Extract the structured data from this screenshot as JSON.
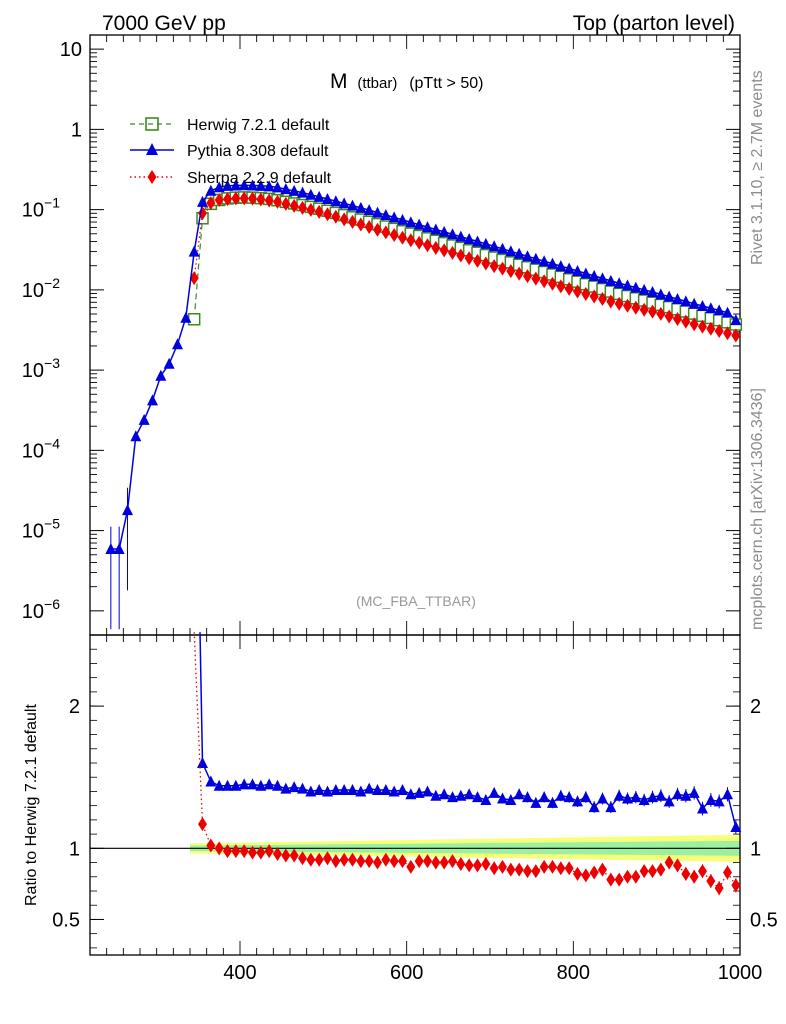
{
  "header": {
    "left": "7000 GeV pp",
    "right": "Top (parton level)"
  },
  "plot_title": {
    "main": "M",
    "sub": "(ttbar)",
    "cut": "(pTtt > 50)"
  },
  "side_labels": {
    "rivet": "Rivet 3.1.10, ≥ 2.7M events",
    "mcplots": "mcplots.cern.ch [arXiv:1306.3436]"
  },
  "analysis_tag": "(MC_FBA_TTBAR)",
  "ratio_ylabel": "Ratio to Herwig 7.2.1 default",
  "colors": {
    "herwig": "#3a8a1e",
    "pythia": "#0000dd",
    "sherpa": "#ee0000",
    "band_outer": "#f5ff7a",
    "band_inner": "#9cf0a0"
  },
  "chart_data": [
    {
      "type": "line",
      "yscale": "log",
      "xlim": [
        220,
        1000
      ],
      "ylim": [
        5e-07,
        15
      ],
      "yticks": [
        {
          "v": 10,
          "label": "10"
        },
        {
          "v": 1,
          "label": "1"
        },
        {
          "v": 0.1,
          "label": "10^-1"
        },
        {
          "v": 0.01,
          "label": "10^-2"
        },
        {
          "v": 0.001,
          "label": "10^-3"
        },
        {
          "v": 0.0001,
          "label": "10^-4"
        },
        {
          "v": 1e-05,
          "label": "10^-5"
        },
        {
          "v": 1e-06,
          "label": "10^-6"
        }
      ],
      "series": [
        {
          "name": "Herwig 7.2.1 default",
          "marker": "open-square",
          "line": "dashed",
          "x_start": 345,
          "x_step": 10,
          "x_end": 995,
          "anchors": [
            [
              345,
              0.0043
            ],
            [
              355,
              0.078
            ],
            [
              365,
              0.118
            ],
            [
              375,
              0.132
            ],
            [
              385,
              0.138
            ],
            [
              395,
              0.141
            ],
            [
              405,
              0.142
            ],
            [
              415,
              0.141
            ],
            [
              425,
              0.139
            ],
            [
              435,
              0.136
            ],
            [
              445,
              0.131
            ],
            [
              475,
              0.114
            ],
            [
              500,
              0.1
            ],
            [
              550,
              0.073
            ],
            [
              600,
              0.052
            ],
            [
              650,
              0.037
            ],
            [
              700,
              0.0262
            ],
            [
              750,
              0.0185
            ],
            [
              800,
              0.0131
            ],
            [
              850,
              0.0092
            ],
            [
              900,
              0.0067
            ],
            [
              950,
              0.0049
            ],
            [
              995,
              0.0037
            ]
          ]
        },
        {
          "name": "Pythia 8.308 default",
          "marker": "filled-triangle",
          "line": "solid",
          "x_start": 245,
          "x_step": 10,
          "x_end": 995,
          "anchors": [
            [
              245,
              5.9e-06
            ],
            [
              255,
              5.9e-06
            ],
            [
              265,
              1.8e-05
            ],
            [
              275,
              0.00015
            ],
            [
              285,
              0.00024
            ],
            [
              295,
              0.00042
            ],
            [
              305,
              0.00085
            ],
            [
              315,
              0.0012
            ],
            [
              325,
              0.0021
            ],
            [
              335,
              0.0045
            ],
            [
              345,
              0.03
            ],
            [
              355,
              0.125
            ],
            [
              365,
              0.172
            ],
            [
              375,
              0.19
            ],
            [
              385,
              0.198
            ],
            [
              395,
              0.2
            ],
            [
              405,
              0.201
            ],
            [
              415,
              0.2
            ],
            [
              425,
              0.198
            ],
            [
              435,
              0.195
            ],
            [
              445,
              0.189
            ],
            [
              475,
              0.163
            ],
            [
              500,
              0.14
            ],
            [
              550,
              0.102
            ],
            [
              600,
              0.072
            ],
            [
              650,
              0.051
            ],
            [
              700,
              0.0362
            ],
            [
              750,
              0.0253
            ],
            [
              800,
              0.0178
            ],
            [
              850,
              0.0125
            ],
            [
              900,
              0.0091
            ],
            [
              950,
              0.0065
            ],
            [
              985,
              0.0052
            ],
            [
              995,
              0.0042
            ]
          ]
        },
        {
          "name": "Sherpa 2.2.9 default",
          "marker": "filled-diamond",
          "line": "dotted",
          "x_start": 345,
          "x_step": 10,
          "x_end": 995,
          "anchors": [
            [
              345,
              0.014
            ],
            [
              355,
              0.09
            ],
            [
              365,
              0.121
            ],
            [
              375,
              0.132
            ],
            [
              385,
              0.135
            ],
            [
              395,
              0.138
            ],
            [
              405,
              0.138
            ],
            [
              415,
              0.137
            ],
            [
              425,
              0.134
            ],
            [
              435,
              0.13
            ],
            [
              445,
              0.125
            ],
            [
              475,
              0.105
            ],
            [
              500,
              0.091
            ],
            [
              550,
              0.063
            ],
            [
              600,
              0.043
            ],
            [
              650,
              0.03
            ],
            [
              700,
              0.0205
            ],
            [
              750,
              0.0143
            ],
            [
              800,
              0.0099
            ],
            [
              850,
              0.0069
            ],
            [
              900,
              0.0052
            ],
            [
              950,
              0.0036
            ],
            [
              995,
              0.0027
            ]
          ]
        }
      ]
    },
    {
      "type": "line",
      "xlabel": "",
      "ylabel": "Ratio to Herwig 7.2.1 default",
      "xlim": [
        220,
        1000
      ],
      "ylim": [
        0.25,
        2.5
      ],
      "yticks": [
        {
          "v": 0.5,
          "label": "0.5"
        },
        {
          "v": 1,
          "label": "1"
        },
        {
          "v": 2,
          "label": "2"
        }
      ],
      "xticks": [
        {
          "v": 400,
          "label": "400"
        },
        {
          "v": 600,
          "label": "600"
        },
        {
          "v": 800,
          "label": "800"
        },
        {
          "v": 1000,
          "label": "1000"
        }
      ],
      "series": [
        {
          "name": "Pythia 8.308 default",
          "x": [
            355,
            365,
            375,
            385,
            395,
            405,
            415,
            425,
            435,
            445,
            455,
            465,
            475,
            485,
            495,
            505,
            515,
            525,
            535,
            545,
            555,
            565,
            575,
            585,
            595,
            605,
            615,
            625,
            635,
            645,
            655,
            665,
            675,
            685,
            695,
            705,
            715,
            725,
            735,
            745,
            755,
            765,
            775,
            785,
            795,
            805,
            815,
            825,
            835,
            845,
            855,
            865,
            875,
            885,
            895,
            905,
            915,
            925,
            935,
            945,
            955,
            965,
            975,
            985,
            995
          ],
          "values": [
            1.6,
            1.47,
            1.44,
            1.44,
            1.44,
            1.45,
            1.45,
            1.44,
            1.45,
            1.44,
            1.42,
            1.43,
            1.42,
            1.4,
            1.41,
            1.4,
            1.41,
            1.41,
            1.41,
            1.4,
            1.42,
            1.41,
            1.41,
            1.4,
            1.41,
            1.38,
            1.39,
            1.4,
            1.37,
            1.38,
            1.36,
            1.37,
            1.38,
            1.36,
            1.34,
            1.39,
            1.35,
            1.34,
            1.38,
            1.36,
            1.32,
            1.36,
            1.32,
            1.37,
            1.36,
            1.33,
            1.36,
            1.29,
            1.35,
            1.29,
            1.37,
            1.35,
            1.36,
            1.34,
            1.36,
            1.37,
            1.33,
            1.38,
            1.37,
            1.39,
            1.28,
            1.34,
            1.33,
            1.38,
            1.15
          ]
        },
        {
          "name": "Sherpa 2.2.9 default",
          "x": [
            345,
            355,
            365,
            375,
            385,
            395,
            405,
            415,
            425,
            435,
            445,
            455,
            465,
            475,
            485,
            495,
            505,
            515,
            525,
            535,
            545,
            555,
            565,
            575,
            585,
            595,
            605,
            615,
            625,
            635,
            645,
            655,
            665,
            675,
            685,
            695,
            705,
            715,
            725,
            735,
            745,
            755,
            765,
            775,
            785,
            795,
            805,
            815,
            825,
            835,
            845,
            855,
            865,
            875,
            885,
            895,
            905,
            915,
            925,
            935,
            945,
            955,
            965,
            975,
            985,
            995
          ],
          "values": [
            3.2,
            1.17,
            1.02,
            1.0,
            0.98,
            0.98,
            0.98,
            0.97,
            0.97,
            0.98,
            0.96,
            0.95,
            0.95,
            0.93,
            0.92,
            0.92,
            0.93,
            0.91,
            0.92,
            0.92,
            0.91,
            0.91,
            0.9,
            0.92,
            0.91,
            0.91,
            0.87,
            0.91,
            0.91,
            0.9,
            0.9,
            0.91,
            0.89,
            0.88,
            0.88,
            0.89,
            0.86,
            0.87,
            0.85,
            0.85,
            0.84,
            0.84,
            0.87,
            0.87,
            0.86,
            0.86,
            0.82,
            0.81,
            0.83,
            0.85,
            0.78,
            0.78,
            0.8,
            0.8,
            0.84,
            0.84,
            0.85,
            0.9,
            0.88,
            0.82,
            0.8,
            0.84,
            0.77,
            0.72,
            0.83,
            0.74
          ]
        }
      ]
    }
  ]
}
